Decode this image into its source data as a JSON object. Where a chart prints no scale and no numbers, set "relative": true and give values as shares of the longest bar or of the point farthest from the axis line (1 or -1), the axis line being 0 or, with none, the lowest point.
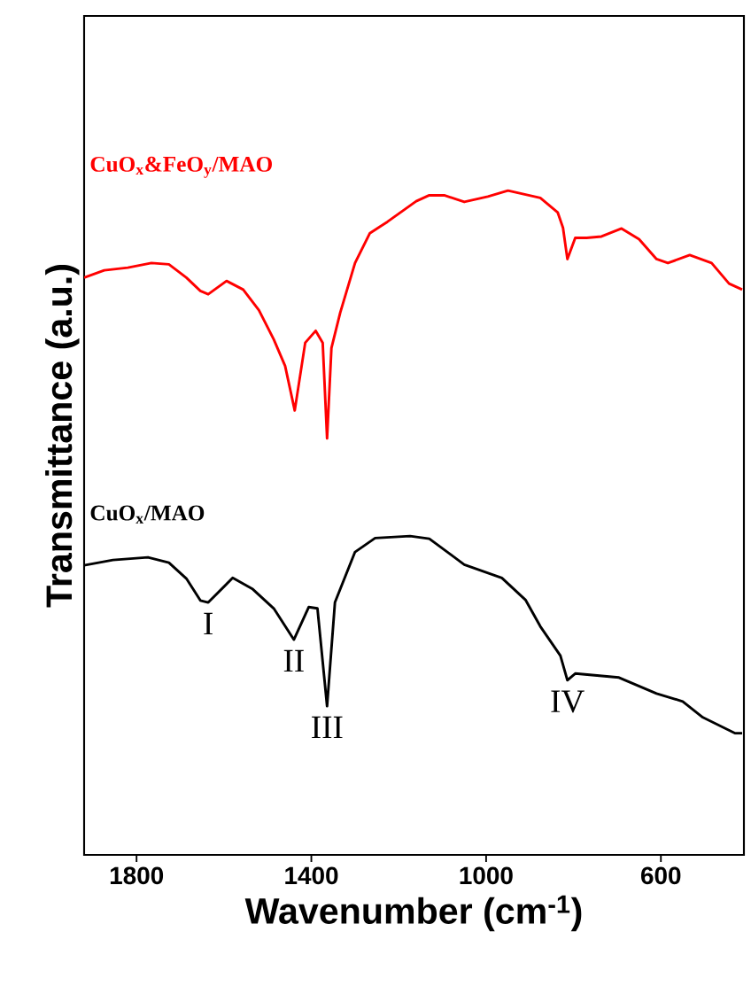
{
  "chart_data": {
    "type": "line",
    "relative": true,
    "xlabel": "Wavenumber (cm$^{-1}$)",
    "ylabel": "Transmittance (a.u.)",
    "xlim": [
      1920,
      410
    ],
    "xticks": [
      1800,
      1400,
      1000,
      600
    ],
    "legend": false,
    "grid": false,
    "marker": "none",
    "line_style": "solid",
    "series": [
      {
        "name": "CuO$_{x}$&FeO$_{y}$/MAO",
        "color": "#ff0000",
        "x": [
          1920,
          1874,
          1820,
          1766,
          1726,
          1686,
          1654,
          1636,
          1594,
          1556,
          1520,
          1486,
          1460,
          1438,
          1414,
          1390,
          1374,
          1364,
          1354,
          1334,
          1300,
          1266,
          1226,
          1160,
          1130,
          1096,
          1050,
          996,
          950,
          876,
          836,
          824,
          814,
          796,
          770,
          736,
          690,
          650,
          610,
          584,
          534,
          484,
          444,
          414
        ],
        "values": [
          0.869,
          0.88,
          0.884,
          0.891,
          0.889,
          0.869,
          0.849,
          0.844,
          0.864,
          0.851,
          0.82,
          0.776,
          0.736,
          0.669,
          0.771,
          0.789,
          0.771,
          0.627,
          0.763,
          0.816,
          0.891,
          0.936,
          0.953,
          0.984,
          0.993,
          0.993,
          0.983,
          0.991,
          1,
          0.989,
          0.967,
          0.944,
          0.897,
          0.929,
          0.929,
          0.931,
          0.943,
          0.927,
          0.897,
          0.891,
          0.903,
          0.891,
          0.86,
          0.851
        ]
      },
      {
        "name": "CuO$_{x}$/MAO",
        "color": "#000000",
        "x": [
          1920,
          1854,
          1774,
          1726,
          1686,
          1654,
          1636,
          1580,
          1534,
          1486,
          1440,
          1406,
          1386,
          1364,
          1346,
          1300,
          1254,
          1174,
          1130,
          1050,
          964,
          910,
          876,
          830,
          814,
          796,
          696,
          610,
          550,
          504,
          430,
          414
        ],
        "values": [
          0.436,
          0.444,
          0.448,
          0.44,
          0.416,
          0.383,
          0.38,
          0.417,
          0.4,
          0.371,
          0.324,
          0.373,
          0.371,
          0.224,
          0.38,
          0.456,
          0.477,
          0.48,
          0.476,
          0.437,
          0.417,
          0.384,
          0.344,
          0.3,
          0.263,
          0.273,
          0.267,
          0.243,
          0.231,
          0.207,
          0.183,
          0.183
        ]
      }
    ],
    "annotations": [
      {
        "text": "I",
        "x": 1636,
        "y": 0.38
      },
      {
        "text": "II",
        "x": 1440,
        "y": 0.324
      },
      {
        "text": "III",
        "x": 1364,
        "y": 0.224
      },
      {
        "text": "IV",
        "x": 814,
        "y": 0.263
      }
    ]
  }
}
